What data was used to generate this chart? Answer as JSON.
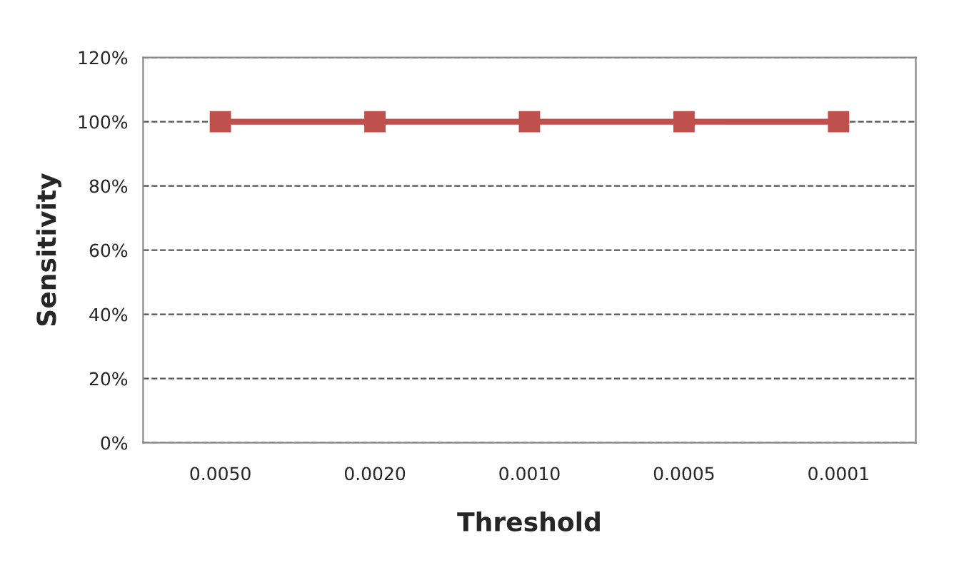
{
  "chart_data": {
    "type": "line",
    "xlabel": "Threshold",
    "ylabel": "Sensitivity",
    "categories": [
      "0.0050",
      "0.0020",
      "0.0010",
      "0.0005",
      "0.0001"
    ],
    "series": [
      {
        "color": "#c0504d",
        "values": [
          100,
          100,
          100,
          100,
          100
        ]
      }
    ],
    "ylim": [
      0,
      120
    ],
    "yticks": [
      {
        "value": 0,
        "label": "0%"
      },
      {
        "value": 20,
        "label": "20%"
      },
      {
        "value": 40,
        "label": "40%"
      },
      {
        "value": 60,
        "label": "60%"
      },
      {
        "value": 80,
        "label": "80%"
      },
      {
        "value": 100,
        "label": "100%"
      },
      {
        "value": 120,
        "label": "120%"
      }
    ],
    "grid": "y",
    "marker": "square",
    "line_style": "solid"
  }
}
